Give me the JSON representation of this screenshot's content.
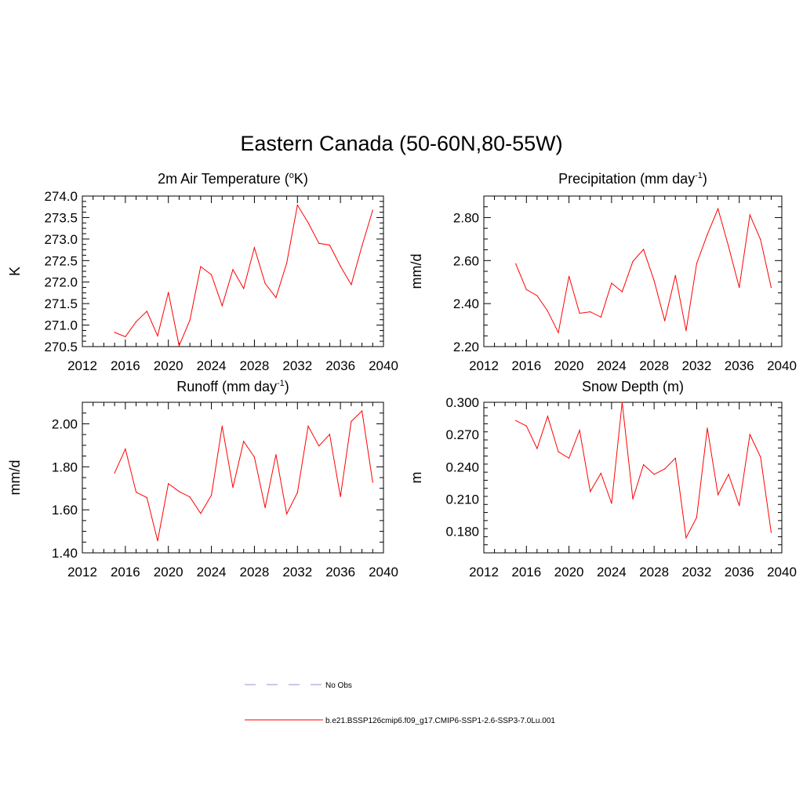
{
  "figure_title": "Eastern Canada (50-60N,80-55W)",
  "legend": {
    "items": [
      {
        "label": "No Obs",
        "style": "dashed",
        "color": "#a9a9e0"
      },
      {
        "label": "b.e21.BSSP126cmip6.f09_g17.CMIP6-SSP1-2.6-SSP3-7.0Lu.001",
        "style": "solid",
        "color": "#ff0000"
      }
    ]
  },
  "chart_data": [
    {
      "type": "line",
      "title_main": "2m Air Temperature (",
      "title_sup": "o",
      "title_end": "K)",
      "ylabel": "K",
      "xlim": [
        2012,
        2040
      ],
      "x_ticks": [
        "2012",
        "2016",
        "2020",
        "2024",
        "2028",
        "2032",
        "2036",
        "2040"
      ],
      "ylim": [
        270.5,
        274.0
      ],
      "y_ticks": [
        "270.5",
        "271.0",
        "271.5",
        "272.0",
        "272.5",
        "273.0",
        "273.5",
        "274.0"
      ],
      "series_color": "#ff0000",
      "x": [
        2015,
        2016,
        2017,
        2018,
        2019,
        2020,
        2021,
        2022,
        2023,
        2024,
        2025,
        2026,
        2027,
        2028,
        2029,
        2030,
        2031,
        2032,
        2033,
        2034,
        2035,
        2036,
        2037,
        2038,
        2039
      ],
      "values": [
        270.83,
        270.73,
        271.08,
        271.32,
        270.75,
        271.76,
        270.52,
        271.11,
        272.36,
        272.17,
        271.45,
        272.29,
        271.85,
        272.8,
        271.97,
        271.64,
        272.44,
        273.79,
        273.38,
        272.9,
        272.86,
        272.37,
        271.94,
        272.84,
        273.67
      ]
    },
    {
      "type": "line",
      "title_main": "Precipitation (mm day",
      "title_sup": "-1",
      "title_end": ")",
      "ylabel": "mm/d",
      "xlim": [
        2012,
        2040
      ],
      "x_ticks": [
        "2012",
        "2016",
        "2020",
        "2024",
        "2028",
        "2032",
        "2036",
        "2040"
      ],
      "ylim": [
        2.2,
        2.9
      ],
      "y_ticks": [
        "2.20",
        "2.40",
        "2.60",
        "2.80"
      ],
      "series_color": "#ff0000",
      "x": [
        2015,
        2016,
        2017,
        2018,
        2019,
        2020,
        2021,
        2022,
        2023,
        2024,
        2025,
        2026,
        2027,
        2028,
        2029,
        2030,
        2031,
        2032,
        2033,
        2034,
        2035,
        2036,
        2037,
        2038,
        2039
      ],
      "values": [
        2.585,
        2.465,
        2.437,
        2.365,
        2.265,
        2.527,
        2.355,
        2.362,
        2.337,
        2.495,
        2.455,
        2.596,
        2.652,
        2.507,
        2.32,
        2.531,
        2.274,
        2.586,
        2.721,
        2.841,
        2.665,
        2.475,
        2.812,
        2.697,
        2.475
      ]
    },
    {
      "type": "line",
      "title_main": "Runoff (mm day",
      "title_sup": "-1",
      "title_end": ")",
      "ylabel": "mm/d",
      "xlim": [
        2012,
        2040
      ],
      "x_ticks": [
        "2012",
        "2016",
        "2020",
        "2024",
        "2028",
        "2032",
        "2036",
        "2040"
      ],
      "ylim": [
        1.4,
        2.1
      ],
      "y_ticks": [
        "1.40",
        "1.60",
        "1.80",
        "2.00"
      ],
      "series_color": "#ff0000",
      "x": [
        2015,
        2016,
        2017,
        2018,
        2019,
        2020,
        2021,
        2022,
        2023,
        2024,
        2025,
        2026,
        2027,
        2028,
        2029,
        2030,
        2031,
        2032,
        2033,
        2034,
        2035,
        2036,
        2037,
        2038,
        2039
      ],
      "values": [
        1.771,
        1.883,
        1.682,
        1.657,
        1.456,
        1.722,
        1.685,
        1.66,
        1.583,
        1.668,
        1.989,
        1.704,
        1.918,
        1.845,
        1.61,
        1.857,
        1.581,
        1.68,
        1.989,
        1.897,
        1.951,
        1.661,
        2.011,
        2.06,
        1.728
      ]
    },
    {
      "type": "line",
      "title_main": "Snow Depth (m)",
      "title_sup": "",
      "title_end": "",
      "ylabel": "m",
      "xlim": [
        2012,
        2040
      ],
      "x_ticks": [
        "2012",
        "2016",
        "2020",
        "2024",
        "2028",
        "2032",
        "2036",
        "2040"
      ],
      "ylim": [
        0.16,
        0.3
      ],
      "y_ticks": [
        "0.180",
        "0.210",
        "0.240",
        "0.270",
        "0.300"
      ],
      "series_color": "#ff0000",
      "x": [
        2015,
        2016,
        2017,
        2018,
        2019,
        2020,
        2021,
        2022,
        2023,
        2024,
        2025,
        2026,
        2027,
        2028,
        2029,
        2030,
        2031,
        2032,
        2033,
        2034,
        2035,
        2036,
        2037,
        2038,
        2039
      ],
      "values": [
        0.283,
        0.278,
        0.257,
        0.287,
        0.254,
        0.248,
        0.274,
        0.217,
        0.234,
        0.206,
        0.3,
        0.21,
        0.242,
        0.233,
        0.238,
        0.248,
        0.174,
        0.193,
        0.276,
        0.214,
        0.233,
        0.204,
        0.27,
        0.249,
        0.179
      ]
    }
  ]
}
